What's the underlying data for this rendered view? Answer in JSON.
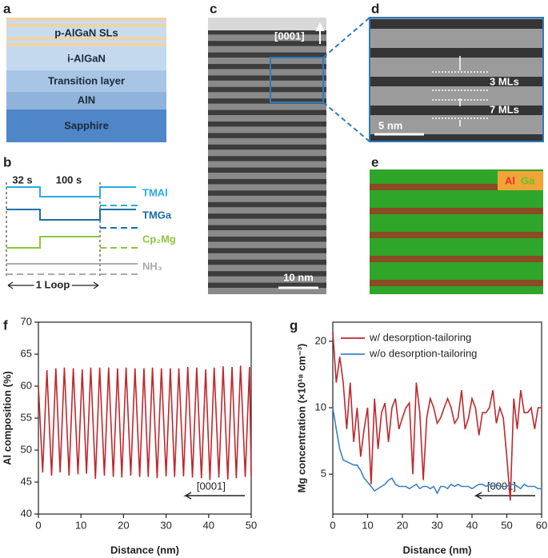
{
  "panel_labels": [
    "a",
    "b",
    "c",
    "d",
    "e",
    "f",
    "g"
  ],
  "layers": [
    "p-AlGaN SLs",
    "i-AlGaN",
    "Transition layer",
    "AlN",
    "Sapphire"
  ],
  "timing": {
    "durations": [
      "32 s",
      "100 s"
    ],
    "precursors": [
      "TMAl",
      "TMGa",
      "Cp₂Mg",
      "NH₃"
    ],
    "loop": "1 Loop"
  },
  "tem": {
    "direction": "[0001]",
    "scale_bar": "10 nm"
  },
  "hrtem": {
    "labels": [
      "3 MLs",
      "7 MLs"
    ],
    "scale_bar": "5 nm"
  },
  "eds": {
    "elements": [
      {
        "name": "Al",
        "color": "#e8312a"
      },
      {
        "name": "Ga",
        "color": "#58c932"
      }
    ]
  },
  "chart_data": [
    {
      "type": "line",
      "x_label": "Distance (nm)",
      "y_label": "Al composition (%)",
      "annotation": "[0001]",
      "x": [
        0,
        1.0,
        2.0,
        3.1,
        4.1,
        5.1,
        6.1,
        7.2,
        8.2,
        9.3,
        10.3,
        11.3,
        12.3,
        13.4,
        14.4,
        15.5,
        16.5,
        17.6,
        18.6,
        19.6,
        20.6,
        21.7,
        22.7,
        23.8,
        24.8,
        25.8,
        26.8,
        27.9,
        28.9,
        30.0,
        31.0,
        32.0,
        33.0,
        34.1,
        35.1,
        36.2,
        37.2,
        38.3,
        39.3,
        40.3,
        41.3,
        42.4,
        43.4,
        44.5,
        45.5,
        46.5,
        47.5,
        48.6,
        49.6,
        50
      ],
      "series": [
        {
          "color": "#c0272d",
          "values": [
            60,
            46.5,
            62.5,
            46,
            62.8,
            46.5,
            62.9,
            46,
            62.8,
            46.2,
            62.6,
            46.3,
            62.9,
            45.5,
            62.9,
            46,
            62.9,
            45.8,
            62.8,
            45.7,
            62.9,
            46,
            62.8,
            45.8,
            62.8,
            45.8,
            62.9,
            45.6,
            62.8,
            45.9,
            62.8,
            45.8,
            62.8,
            45.9,
            63.0,
            45.7,
            62.9,
            45.6,
            62.6,
            45.3,
            62.9,
            45.7,
            63.1,
            45.4,
            63.0,
            45.6,
            63.2,
            45.8,
            63.0,
            46
          ]
        }
      ],
      "xlim": [
        0,
        50
      ],
      "ylim": [
        40,
        70
      ],
      "xticks": [
        0,
        10,
        20,
        30,
        40,
        50
      ],
      "yticks": [
        40,
        45,
        50,
        55,
        60,
        65,
        70
      ]
    },
    {
      "type": "line",
      "x_label": "Distance (nm)",
      "y_label": "Mg concentration (×10¹⁸ cm⁻³)",
      "annotation": "[0001]",
      "log_y": true,
      "legend": "top-left",
      "x": [
        0,
        1,
        2,
        3,
        4,
        5,
        6,
        7,
        8,
        9,
        10,
        11,
        12,
        13,
        14,
        15,
        16,
        17,
        18,
        19,
        20,
        21,
        22,
        23,
        24,
        25,
        26,
        27,
        28,
        29,
        30,
        31,
        32,
        33,
        34,
        35,
        36,
        37,
        38,
        39,
        40,
        41,
        42,
        43,
        44,
        45,
        46,
        47,
        48,
        49,
        50,
        51,
        52,
        53,
        54,
        55,
        56,
        57,
        58,
        59,
        60
      ],
      "series": [
        {
          "name": "w/ desorption-tailoring",
          "color": "#c0272d",
          "values": [
            22,
            13,
            17,
            13,
            8,
            13,
            7,
            10,
            6,
            8,
            10,
            4.5,
            11,
            6.5,
            9.5,
            10.5,
            7,
            10,
            11,
            8,
            9,
            10,
            10.5,
            5,
            13,
            9.5,
            4.7,
            9,
            11,
            10,
            8.5,
            9,
            10,
            11,
            10,
            8.5,
            9,
            12,
            8,
            9,
            11,
            10,
            7.5,
            9.5,
            9.5,
            10,
            12,
            8.5,
            10,
            9,
            6,
            3.8,
            11,
            8,
            12,
            9.5,
            9.5,
            10,
            8,
            10,
            10
          ]
        },
        {
          "name": "w/o desorption-tailoring",
          "color": "#3b82c4",
          "values": [
            10,
            8,
            6.5,
            5.8,
            5.7,
            5.6,
            5.5,
            5.5,
            5.2,
            4.8,
            4.6,
            4.4,
            4.2,
            4.3,
            4.4,
            4.5,
            4.7,
            4.8,
            4.5,
            4.4,
            4.4,
            4.4,
            4.3,
            4.4,
            4.5,
            4.3,
            4.4,
            4.4,
            4.3,
            4.4,
            4.1,
            4.4,
            4.4,
            4.3,
            4.5,
            4.4,
            4.5,
            4.4,
            4.4,
            4.4,
            4.3,
            4.4,
            4.5,
            4.5,
            4.4,
            4.5,
            4.4,
            4.5,
            4.4,
            4.4,
            4.4,
            4.5,
            4.5,
            4.4,
            4.3,
            4.5,
            4.4,
            4.4,
            4.4,
            4.3,
            4.3
          ]
        }
      ],
      "xlim": [
        0,
        60
      ],
      "ylim": [
        3.3,
        24.4
      ],
      "xticks": [
        0,
        10,
        20,
        30,
        40,
        50,
        60
      ],
      "yticks": [
        5,
        10,
        20
      ]
    }
  ]
}
